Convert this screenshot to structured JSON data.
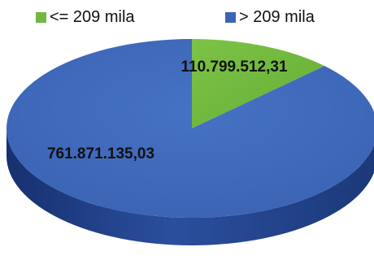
{
  "chart_data": {
    "type": "pie",
    "categories": [
      "<= 209 mila",
      "> 209 mila"
    ],
    "values": [
      110799512.31,
      761871135.03
    ],
    "data_labels": [
      "110.799.512,31",
      "761.871.135,03"
    ],
    "colors": [
      "#70b83f",
      "#3b64b5"
    ],
    "style": "3d",
    "legend_position": "top"
  }
}
